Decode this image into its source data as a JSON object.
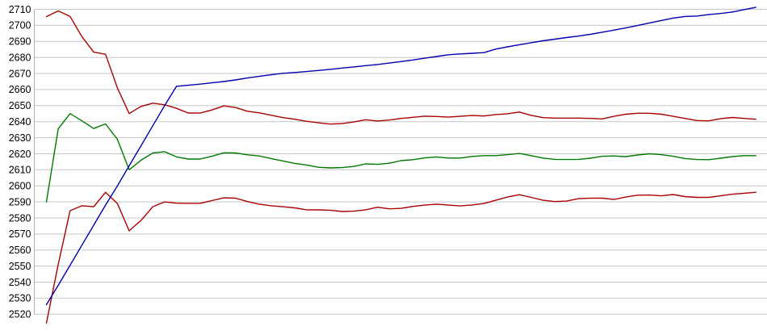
{
  "chart_data": {
    "type": "line",
    "title": "",
    "xlabel": "",
    "ylabel": "",
    "grid": true,
    "legend": "none",
    "ylim": [
      2520,
      2710
    ],
    "y_tick_step": 10,
    "y_ticks": [
      2710,
      2700,
      2690,
      2680,
      2670,
      2660,
      2650,
      2640,
      2630,
      2620,
      2610,
      2600,
      2590,
      2580,
      2570,
      2560,
      2550,
      2540,
      2530,
      2520
    ],
    "x": [
      0,
      1,
      2,
      3,
      4,
      5,
      6,
      7,
      8,
      9,
      10,
      11,
      12,
      13,
      14,
      15,
      16,
      17,
      18,
      19,
      20,
      21,
      22,
      23,
      24,
      25,
      26,
      27,
      28,
      29,
      30,
      31,
      32,
      33,
      34,
      35,
      36,
      37,
      38,
      39,
      40,
      41,
      42,
      43,
      44,
      45,
      46,
      47,
      48,
      49,
      50,
      51,
      52,
      53,
      54,
      55,
      56,
      57,
      58,
      59,
      60
    ],
    "colors": {
      "grid": "#c6c6c6",
      "axis": "#b0b0b0",
      "blue_series": "#0000b3",
      "red_series": "#aa0000",
      "green_series": "#007a00",
      "background": "#ffffff",
      "tick_text": "#000000"
    },
    "series": [
      {
        "name": "green-line",
        "color": "#007a00",
        "values": [
          2590,
          2635.5,
          2645,
          2640.5,
          2635.7,
          2638.6,
          2629,
          2610,
          2616,
          2620.5,
          2621.3,
          2618,
          2616.7,
          2616.7,
          2618.4,
          2620.6,
          2620.5,
          2619.3,
          2618.6,
          2617,
          2615.5,
          2614,
          2613,
          2611.6,
          2611.2,
          2611.4,
          2612.1,
          2613.7,
          2613.4,
          2614.1,
          2615.7,
          2616.3,
          2617.4,
          2618,
          2617.3,
          2617.3,
          2618.3,
          2618.8,
          2618.8,
          2619.4,
          2620.2,
          2618.8,
          2617.3,
          2616.5,
          2616.4,
          2616.5,
          2617.2,
          2618.4,
          2618.6,
          2618.2,
          2619.2,
          2620,
          2619.4,
          2618.4,
          2617,
          2616.4,
          2616.3,
          2617.2,
          2618.2,
          2618.8,
          2618.8
        ]
      },
      {
        "name": "red-upper-line",
        "color": "#aa0000",
        "values": [
          2705.4,
          2709,
          2705.5,
          2693,
          2683.3,
          2682,
          2661,
          2645,
          2649.5,
          2651.5,
          2650.5,
          2648.3,
          2645.4,
          2645.3,
          2647.3,
          2649.8,
          2648.8,
          2646.5,
          2645.5,
          2644,
          2642.5,
          2641.5,
          2640.2,
          2639.3,
          2638.5,
          2638.8,
          2639.8,
          2641.2,
          2640.4,
          2641,
          2642,
          2642.7,
          2643.4,
          2643.2,
          2642.8,
          2643.3,
          2643.8,
          2643.5,
          2644.4,
          2644.9,
          2646,
          2643.9,
          2642.5,
          2642.2,
          2642.2,
          2642.2,
          2642,
          2641.7,
          2643.3,
          2644.6,
          2645.2,
          2645.2,
          2644.6,
          2643.3,
          2642,
          2640.7,
          2640.5,
          2641.8,
          2642.6,
          2642,
          2641.5
        ]
      },
      {
        "name": "red-lower-line",
        "color": "#aa0000",
        "values": [
          2514.5,
          2551,
          2584.5,
          2587.6,
          2587,
          2596,
          2589,
          2572,
          2578.5,
          2587,
          2590,
          2589.2,
          2589.1,
          2589.1,
          2590.8,
          2592.5,
          2592.3,
          2590.2,
          2588.6,
          2587.6,
          2587,
          2586.3,
          2585.1,
          2585,
          2584.8,
          2584,
          2584.2,
          2585.1,
          2586.7,
          2585.7,
          2586,
          2587.2,
          2588,
          2588.6,
          2588,
          2587.5,
          2588.1,
          2589,
          2591,
          2593,
          2594.5,
          2592.8,
          2591,
          2590.2,
          2590.5,
          2592,
          2592.3,
          2592.3,
          2591.5,
          2593,
          2594.2,
          2594.3,
          2593.8,
          2594.6,
          2593.3,
          2592.8,
          2592.8,
          2593.8,
          2594.8,
          2595.4,
          2596
        ]
      },
      {
        "name": "blue-line",
        "color": "#0000b3",
        "values": [
          2526,
          2538,
          2550.5,
          2563,
          2575.5,
          2588,
          2600,
          2612.5,
          2625,
          2637.5,
          2650,
          2662,
          2662.7,
          2663.4,
          2664.2,
          2665,
          2666,
          2667.2,
          2668.2,
          2669.2,
          2670.1,
          2670.6,
          2671.2,
          2671.9,
          2672.6,
          2673.4,
          2674.1,
          2674.9,
          2675.6,
          2676.5,
          2677.4,
          2678.4,
          2679.5,
          2680.6,
          2681.7,
          2682.2,
          2682.6,
          2683,
          2685.2,
          2686.6,
          2687.9,
          2689.2,
          2690.4,
          2691.4,
          2692.4,
          2693.3,
          2694.4,
          2695.7,
          2697,
          2698.4,
          2699.9,
          2701.5,
          2703,
          2704.5,
          2705.5,
          2705.8,
          2706.7,
          2707.4,
          2708.3,
          2709.8,
          2711.2
        ]
      }
    ]
  }
}
